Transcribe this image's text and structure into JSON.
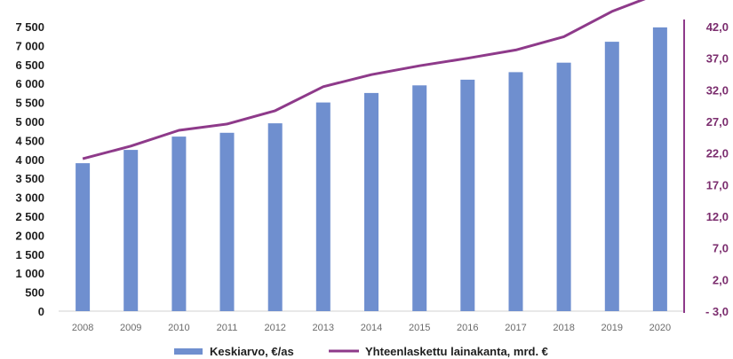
{
  "chart_data": {
    "type": "bar",
    "categories": [
      "2008",
      "2009",
      "2010",
      "2011",
      "2012",
      "2013",
      "2014",
      "2015",
      "2016",
      "2017",
      "2018",
      "2019",
      "2020"
    ],
    "series": [
      {
        "name": "Keskiarvo, €/as",
        "type": "bar",
        "axis": "left",
        "color": "#6f8fcf",
        "values": [
          3900,
          4250,
          4600,
          4700,
          4950,
          5500,
          5750,
          5950,
          6100,
          6300,
          6550,
          7100,
          7480
        ]
      },
      {
        "name": "Yhteenlaskettu lainakanta, mrd. €",
        "type": "line",
        "axis": "right",
        "color": "#8e3a8a",
        "values": [
          21.1,
          23.1,
          25.6,
          26.6,
          28.7,
          32.5,
          34.4,
          35.8,
          37.0,
          38.3,
          40.4,
          44.4,
          47.3
        ]
      }
    ],
    "left_axis": {
      "ylim": [
        0,
        7500
      ],
      "ticks": [
        "0",
        "500",
        "1 000",
        "1 500",
        "2 000",
        "2 500",
        "3 000",
        "3 500",
        "4 000",
        "4 500",
        "5 000",
        "5 500",
        "6 000",
        "6 500",
        "7 000",
        "7 500"
      ]
    },
    "right_axis": {
      "ylim": [
        -3,
        42
      ],
      "ticks": [
        "- 3,0",
        "2,0",
        "7,0",
        "12,0",
        "17,0",
        "22,0",
        "27,0",
        "32,0",
        "37,0",
        "42,0"
      ]
    },
    "grid": false,
    "legend": "bottom"
  }
}
